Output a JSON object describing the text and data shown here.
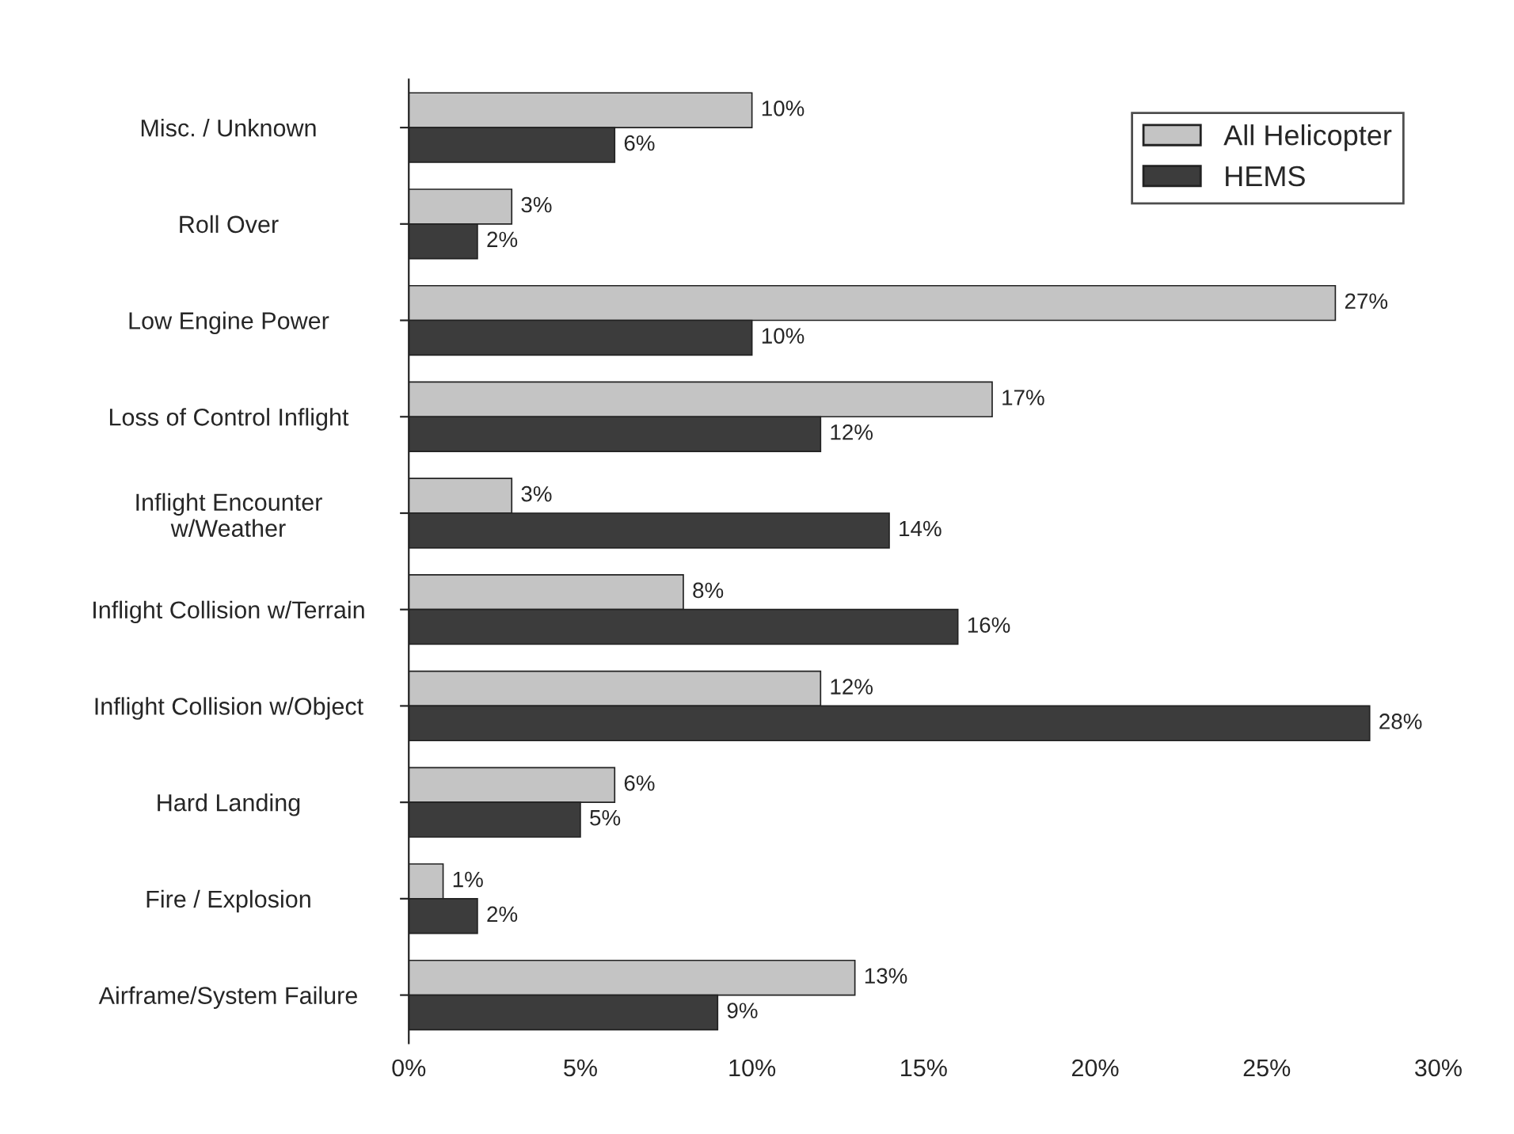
{
  "chart_data": {
    "type": "bar",
    "orientation": "horizontal",
    "categories": [
      "Misc. / Unknown",
      "Roll Over",
      "Low Engine Power",
      "Loss of Control Inflight",
      "Inflight Encounter\nw/Weather",
      "Inflight Collision w/Terrain",
      "Inflight Collision w/Object",
      "Hard Landing",
      "Fire / Explosion",
      "Airframe/System Failure"
    ],
    "series": [
      {
        "name": "All Helicopter",
        "color": "#c4c4c4",
        "values": [
          10,
          3,
          27,
          17,
          3,
          8,
          12,
          6,
          1,
          13
        ],
        "value_labels": [
          "10%",
          "3%",
          "27%",
          "17%",
          "3%",
          "8%",
          "12%",
          "6%",
          "1%",
          "13%"
        ]
      },
      {
        "name": "HEMS",
        "color": "#3c3c3c",
        "values": [
          6,
          2,
          10,
          12,
          14,
          16,
          28,
          5,
          2,
          9
        ],
        "value_labels": [
          "6%",
          "2%",
          "10%",
          "12%",
          "14%",
          "16%",
          "28%",
          "5%",
          "2%",
          "9%"
        ]
      }
    ],
    "xlim": [
      0,
      30
    ],
    "xticks": [
      {
        "value": 0,
        "label": "0%"
      },
      {
        "value": 5,
        "label": "5%"
      },
      {
        "value": 10,
        "label": "10%"
      },
      {
        "value": 15,
        "label": "15%"
      },
      {
        "value": 20,
        "label": "20%"
      },
      {
        "value": 25,
        "label": "25%"
      },
      {
        "value": 30,
        "label": "30%"
      }
    ],
    "legend": "top right",
    "grid": false
  }
}
